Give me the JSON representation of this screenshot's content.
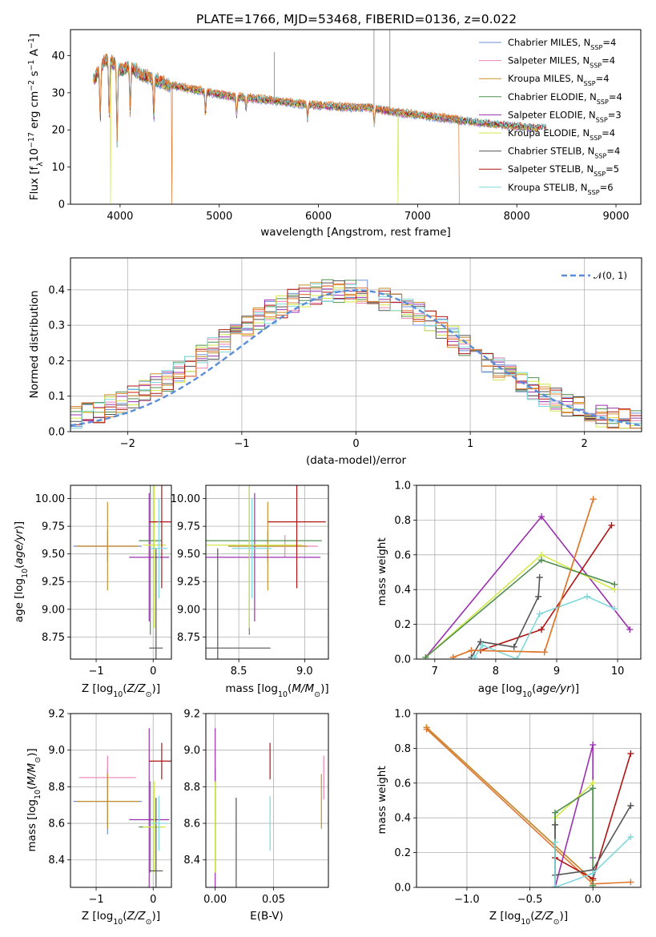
{
  "figure": {
    "title": "PLATE=1766, MJD=53468, FIBERID=0136, z=0.022",
    "colors": {
      "Chabrier MILES": "#6f8fd8",
      "Salpeter MILES": "#ee82b0",
      "Kroupa MILES": "#c8902a",
      "Chabrier ELODIE": "#4f8f4f",
      "Salpeter ELODIE": "#9a30b0",
      "Kroupa ELODIE": "#d2e84a",
      "Chabrier STELIB": "#555555",
      "Salpeter STELIB": "#b01515",
      "Kroupa STELIB": "#7fd8dc",
      "fit_orange": "#e07830",
      "gauss": "#5b8cd6"
    }
  },
  "chart_data": [
    {
      "id": "spectrum",
      "type": "line",
      "title": "PLATE=1766, MJD=53468, FIBERID=0136, z=0.022",
      "xlabel": "wavelength [Angstrom, rest frame]",
      "ylabel": "Flux [f_λ 10^-17 erg cm^-2 s^-1 A^-1]",
      "xlim": [
        3500,
        9250
      ],
      "ylim": [
        0,
        47
      ],
      "xticks": [
        4000,
        5000,
        6000,
        7000,
        8000,
        9000
      ],
      "yticks": [
        0,
        10,
        20,
        30,
        40
      ],
      "grid": false,
      "legend_position": "top-right",
      "legend": [
        {
          "label": "Chabrier MILES, N",
          "sub": "SSP",
          "suffix": "=4",
          "key": "Chabrier MILES"
        },
        {
          "label": "Salpeter MILES, N",
          "sub": "SSP",
          "suffix": "=4",
          "key": "Salpeter MILES"
        },
        {
          "label": "Kroupa MILES, N",
          "sub": "SSP",
          "suffix": "=4",
          "key": "Kroupa MILES"
        },
        {
          "label": "Chabrier ELODIE, N",
          "sub": "SSP",
          "suffix": "=4",
          "key": "Chabrier ELODIE"
        },
        {
          "label": "Salpeter ELODIE, N",
          "sub": "SSP",
          "suffix": "=3",
          "key": "Salpeter ELODIE"
        },
        {
          "label": "Kroupa ELODIE, N",
          "sub": "SSP",
          "suffix": "=4",
          "key": "Kroupa ELODIE"
        },
        {
          "label": "Chabrier STELIB, N",
          "sub": "SSP",
          "suffix": "=4",
          "key": "Chabrier STELIB"
        },
        {
          "label": "Salpeter STELIB, N",
          "sub": "SSP",
          "suffix": "=5",
          "key": "Salpeter STELIB"
        },
        {
          "label": "Kroupa STELIB, N",
          "sub": "SSP",
          "suffix": "=6",
          "key": "Kroupa STELIB"
        }
      ],
      "continuum": [
        [
          3750,
          34
        ],
        [
          3850,
          39
        ],
        [
          3930,
          38
        ],
        [
          4000,
          36
        ],
        [
          4100,
          37
        ],
        [
          4200,
          35
        ],
        [
          4300,
          34
        ],
        [
          4400,
          33
        ],
        [
          4500,
          32
        ],
        [
          4700,
          31
        ],
        [
          4900,
          30
        ],
        [
          5100,
          29
        ],
        [
          5300,
          28.5
        ],
        [
          5500,
          28
        ],
        [
          5800,
          27
        ],
        [
          6000,
          26.5
        ],
        [
          6300,
          26
        ],
        [
          6500,
          26
        ],
        [
          6700,
          25
        ],
        [
          7000,
          24
        ],
        [
          7300,
          23
        ],
        [
          7600,
          22
        ],
        [
          7800,
          21.5
        ],
        [
          8000,
          21
        ],
        [
          8200,
          20.5
        ]
      ],
      "absorption_lines": [
        [
          3800,
          14
        ],
        [
          3890,
          15
        ],
        [
          3970,
          20
        ],
        [
          4102,
          12
        ],
        [
          4340,
          10
        ],
        [
          4861,
          6
        ],
        [
          5175,
          5
        ],
        [
          5270,
          3
        ],
        [
          5890,
          4
        ],
        [
          6563,
          4
        ]
      ],
      "dropouts": [
        {
          "x": 3905,
          "series": "Kroupa ELODIE"
        },
        {
          "x": 4520,
          "series": "fit_orange"
        },
        {
          "x": 6800,
          "series": "Kroupa ELODIE"
        },
        {
          "x": 7420,
          "series": "fit_orange"
        }
      ],
      "spikes": [
        [
          5555,
          41
        ],
        [
          6560,
          47
        ],
        [
          6720,
          47
        ]
      ]
    },
    {
      "id": "residuals",
      "type": "histogram",
      "xlabel": "(data-model)/error",
      "ylabel": "Normed distribution",
      "xlim": [
        -2.5,
        2.5
      ],
      "ylim": [
        0,
        0.49
      ],
      "xticks": [
        -2,
        -1,
        0,
        1,
        2
      ],
      "yticks": [
        0.0,
        0.1,
        0.2,
        0.3,
        0.4
      ],
      "grid": true,
      "legend_position": "top-right",
      "gauss_label": "𝒩(0, 1)",
      "bin_width": 0.1,
      "note": "step histograms for all nine models, approximating a normal shape"
    },
    {
      "id": "age_vs_Z",
      "type": "scatter",
      "xlabel": "Z [log10(Z/Z⊙)]",
      "ylabel": "age  [log10(age/yr)]",
      "xlim": [
        -1.45,
        0.32
      ],
      "ylim": [
        8.55,
        10.12
      ],
      "xticks": [
        -1,
        0
      ],
      "yticks": [
        8.75,
        9.0,
        9.25,
        9.5,
        9.75,
        10.0
      ],
      "grid": true,
      "points": [
        {
          "series": "Chabrier MILES",
          "x": -0.8,
          "y": 9.57,
          "xerr": 0.6,
          "yerr": 0.14
        },
        {
          "series": "Salpeter MILES",
          "x": -0.8,
          "y": 9.57,
          "xerr": 0.5,
          "yerr": 0.1
        },
        {
          "series": "Kroupa MILES",
          "x": -0.8,
          "y": 9.57,
          "xerr": 0.55,
          "yerr": 0.4
        },
        {
          "series": "Chabrier ELODIE",
          "x": -0.05,
          "y": 9.62,
          "xerr": 0.2,
          "yerr": 0.85
        },
        {
          "series": "Salpeter ELODIE",
          "x": -0.07,
          "y": 9.47,
          "xerr": 0.35,
          "yerr": 0.58
        },
        {
          "series": "Kroupa ELODIE",
          "x": 0.02,
          "y": 9.58,
          "xerr": 0.2,
          "yerr": 0.75
        },
        {
          "series": "Chabrier STELIB",
          "x": 0.05,
          "y": 8.65,
          "xerr": 0.12,
          "yerr": 0.9
        },
        {
          "series": "Salpeter STELIB",
          "x": 0.15,
          "y": 9.79,
          "xerr": 0.22,
          "yerr": 0.6
        },
        {
          "series": "Kroupa STELIB",
          "x": 0.1,
          "y": 9.55,
          "xerr": 0.15,
          "yerr": 0.45
        }
      ]
    },
    {
      "id": "age_vs_mass",
      "type": "scatter",
      "xlabel": "mass [log10(M/M⊙)]",
      "ylabel": "",
      "xlim": [
        8.25,
        9.18
      ],
      "ylim": [
        8.55,
        10.12
      ],
      "xticks": [
        8.5,
        9.0
      ],
      "yticks": [
        8.75,
        9.0,
        9.25,
        9.5,
        9.75,
        10.0
      ],
      "grid": true,
      "points": [
        {
          "series": "Chabrier MILES",
          "x": 8.72,
          "y": 9.57,
          "xerr": 0.3,
          "yerr": 0.14
        },
        {
          "series": "Salpeter MILES",
          "x": 8.85,
          "y": 9.57,
          "xerr": 0.25,
          "yerr": 0.1
        },
        {
          "series": "Kroupa MILES",
          "x": 8.72,
          "y": 9.57,
          "xerr": 0.3,
          "yerr": 0.4
        },
        {
          "series": "Chabrier ELODIE",
          "x": 8.58,
          "y": 9.62,
          "xerr": 0.55,
          "yerr": 0.85
        },
        {
          "series": "Salpeter ELODIE",
          "x": 8.62,
          "y": 9.47,
          "xerr": 0.5,
          "yerr": 0.58
        },
        {
          "series": "Kroupa ELODIE",
          "x": 8.58,
          "y": 9.58,
          "xerr": 0.4,
          "yerr": 0.75
        },
        {
          "series": "Chabrier STELIB",
          "x": 8.34,
          "y": 8.65,
          "xerr": 0.4,
          "yerr": 0.9
        },
        {
          "series": "Salpeter STELIB",
          "x": 8.94,
          "y": 9.79,
          "xerr": 0.22,
          "yerr": 0.6
        },
        {
          "series": "Kroupa STELIB",
          "x": 8.6,
          "y": 9.55,
          "xerr": 0.15,
          "yerr": 0.45
        }
      ]
    },
    {
      "id": "weight_vs_age",
      "type": "line",
      "xlabel": "age  [log10(age/yr)]",
      "ylabel": "mass weight",
      "xlim": [
        6.7,
        10.38
      ],
      "ylim": [
        0,
        1.0
      ],
      "xticks": [
        7,
        8,
        9,
        10
      ],
      "yticks": [
        0.0,
        0.2,
        0.4,
        0.6,
        0.8,
        1.0
      ],
      "grid": true,
      "series": [
        {
          "name": "Salpeter ELODIE",
          "x": [
            6.85,
            8.75,
            10.2
          ],
          "y": [
            0.01,
            0.82,
            0.17
          ]
        },
        {
          "name": "Kroupa ELODIE",
          "x": [
            6.85,
            8.75,
            9.95
          ],
          "y": [
            0.01,
            0.6,
            0.4
          ]
        },
        {
          "name": "Chabrier ELODIE",
          "x": [
            6.85,
            8.75,
            9.95
          ],
          "y": [
            0.01,
            0.57,
            0.43
          ]
        },
        {
          "name": "Salpeter STELIB",
          "x": [
            7.75,
            8.75,
            9.9
          ],
          "y": [
            0.05,
            0.17,
            0.77
          ]
        },
        {
          "name": "Chabrier STELIB",
          "x": [
            7.6,
            7.75,
            8.3,
            8.7,
            8.72
          ],
          "y": [
            0.01,
            0.1,
            0.07,
            0.36,
            0.47
          ]
        },
        {
          "name": "Kroupa STELIB",
          "x": [
            7.65,
            7.78,
            8.35,
            8.72,
            9.5,
            9.95
          ],
          "y": [
            0.01,
            0.08,
            0.0,
            0.26,
            0.36,
            0.29
          ]
        },
        {
          "name": "Kroupa MILES",
          "x": [
            7.3,
            7.6,
            8.8,
            9.6
          ],
          "y": [
            0.01,
            0.05,
            0.04,
            0.92
          ]
        },
        {
          "name": "fit_orange",
          "x": [
            7.3,
            7.6,
            8.8,
            9.6
          ],
          "y": [
            0.01,
            0.05,
            0.04,
            0.92
          ]
        }
      ]
    },
    {
      "id": "mass_vs_Z",
      "type": "scatter",
      "xlabel": "Z [log10(Z/Z⊙)]",
      "ylabel": "mass [log10(M/M⊙)]",
      "xlim": [
        -1.45,
        0.32
      ],
      "ylim": [
        8.25,
        9.2
      ],
      "xticks": [
        -1,
        0
      ],
      "yticks": [
        8.4,
        8.6,
        8.8,
        9.0,
        9.2
      ],
      "grid": true,
      "points": [
        {
          "series": "Chabrier MILES",
          "x": -0.8,
          "y": 8.72,
          "xerr": 0.6,
          "yerr": 0.18
        },
        {
          "series": "Salpeter MILES",
          "x": -0.8,
          "y": 8.85,
          "xerr": 0.5,
          "yerr": 0.12
        },
        {
          "series": "Kroupa MILES",
          "x": -0.8,
          "y": 8.72,
          "xerr": 0.55,
          "yerr": 0.15
        },
        {
          "series": "Chabrier ELODIE",
          "x": -0.05,
          "y": 8.58,
          "xerr": 0.2,
          "yerr": 0.25
        },
        {
          "series": "Salpeter ELODIE",
          "x": -0.07,
          "y": 8.62,
          "xerr": 0.35,
          "yerr": 0.5
        },
        {
          "series": "Kroupa ELODIE",
          "x": 0.02,
          "y": 8.58,
          "xerr": 0.2,
          "yerr": 0.25
        },
        {
          "series": "Chabrier STELIB",
          "x": 0.05,
          "y": 8.34,
          "xerr": 0.12,
          "yerr": 0.4
        },
        {
          "series": "Salpeter STELIB",
          "x": 0.15,
          "y": 8.94,
          "xerr": 0.22,
          "yerr": 0.1
        },
        {
          "series": "Kroupa STELIB",
          "x": 0.1,
          "y": 8.6,
          "xerr": 0.15,
          "yerr": 0.15
        }
      ]
    },
    {
      "id": "mass_vs_ebv",
      "type": "scatter",
      "xlabel": "E(B-V)",
      "ylabel": "",
      "xlim": [
        -0.008,
        0.097
      ],
      "ylim": [
        8.25,
        9.2
      ],
      "xticks": [
        0.0,
        0.05
      ],
      "yticks": [
        8.4,
        8.6,
        8.8,
        9.0,
        9.2
      ],
      "grid": true,
      "points": [
        {
          "series": "Chabrier MILES",
          "x": 0.0,
          "y": 8.72,
          "yerr": 0.18
        },
        {
          "series": "Salpeter MILES",
          "x": 0.093,
          "y": 8.85,
          "yerr": 0.12
        },
        {
          "series": "Kroupa MILES",
          "x": 0.091,
          "y": 8.72,
          "yerr": 0.15
        },
        {
          "series": "Chabrier ELODIE",
          "x": 0.0,
          "y": 8.58,
          "yerr": 0.25
        },
        {
          "series": "Salpeter ELODIE",
          "x": 0.0,
          "y": 8.62,
          "yerr": 0.5
        },
        {
          "series": "Kroupa ELODIE",
          "x": 0.0,
          "y": 8.58,
          "yerr": 0.25
        },
        {
          "series": "Chabrier STELIB",
          "x": 0.018,
          "y": 8.34,
          "yerr": 0.4
        },
        {
          "series": "Salpeter STELIB",
          "x": 0.047,
          "y": 8.94,
          "yerr": 0.1
        },
        {
          "series": "Kroupa STELIB",
          "x": 0.047,
          "y": 8.6,
          "yerr": 0.15
        }
      ]
    },
    {
      "id": "weight_vs_Z",
      "type": "line",
      "xlabel": "Z [log10(Z/Z⊙)]",
      "ylabel": "mass weight",
      "xlim": [
        -1.4,
        0.38
      ],
      "ylim": [
        0,
        1.0
      ],
      "xticks": [
        -1.0,
        -0.5,
        0.0
      ],
      "yticks": [
        0.0,
        0.2,
        0.4,
        0.6,
        0.8,
        1.0
      ],
      "grid": true,
      "series": [
        {
          "name": "Chabrier MILES",
          "x": [
            -1.32,
            0.0
          ],
          "y": [
            0.92,
            0.04
          ]
        },
        {
          "name": "Salpeter MILES",
          "x": [
            -1.32,
            0.0
          ],
          "y": [
            0.92,
            0.04
          ]
        },
        {
          "name": "Kroupa MILES",
          "x": [
            -1.32,
            0.0
          ],
          "y": [
            0.92,
            0.04
          ]
        },
        {
          "name": "fit_orange",
          "x": [
            -1.32,
            0.0,
            0.3
          ],
          "y": [
            0.91,
            0.02,
            0.03
          ]
        },
        {
          "name": "Salpeter ELODIE",
          "x": [
            -0.3,
            0.0,
            0.0
          ],
          "y": [
            0.0,
            0.82,
            0.17
          ]
        },
        {
          "name": "Kroupa ELODIE",
          "x": [
            -0.3,
            -0.3,
            0.0,
            0.0
          ],
          "y": [
            0.0,
            0.4,
            0.6,
            0.01
          ]
        },
        {
          "name": "Chabrier ELODIE",
          "x": [
            -0.3,
            -0.3,
            0.0,
            0.0
          ],
          "y": [
            0.0,
            0.43,
            0.57,
            0.01
          ]
        },
        {
          "name": "Salpeter STELIB",
          "x": [
            -0.3,
            0.0,
            0.3
          ],
          "y": [
            0.17,
            0.05,
            0.77
          ]
        },
        {
          "name": "Chabrier STELIB",
          "x": [
            -0.3,
            -0.3,
            0.0,
            0.3
          ],
          "y": [
            0.36,
            0.07,
            0.1,
            0.47
          ]
        },
        {
          "name": "Kroupa STELIB",
          "x": [
            -0.3,
            -0.3,
            0.0,
            0.3
          ],
          "y": [
            0.26,
            0.0,
            0.08,
            0.29
          ]
        }
      ]
    }
  ]
}
